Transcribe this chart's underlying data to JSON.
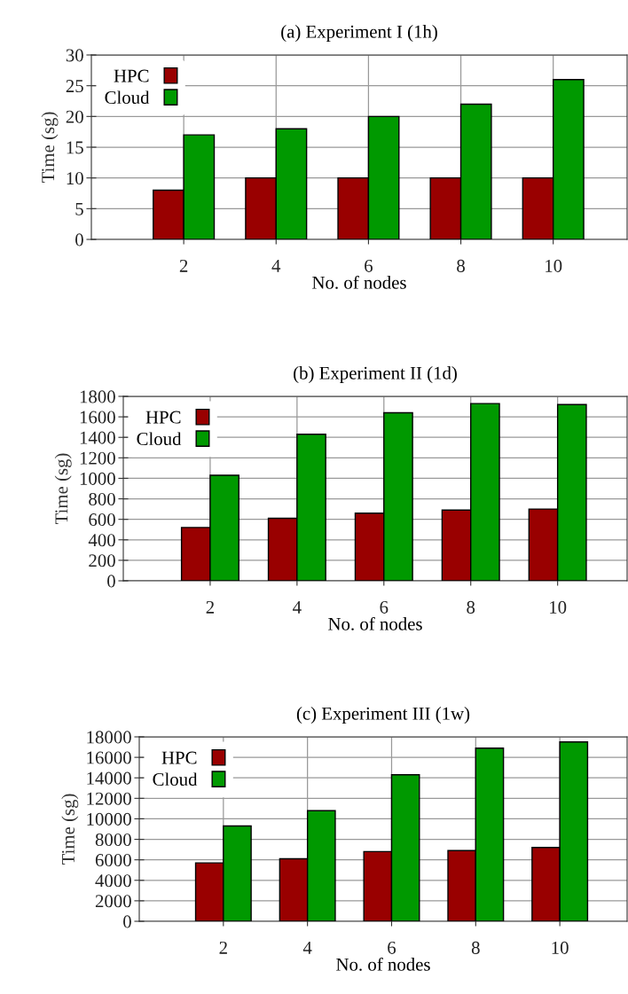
{
  "chart_data": [
    {
      "type": "bar",
      "title": "(a) Experiment I (1h)",
      "xlabel": "No. of nodes",
      "ylabel": "Time (sg)",
      "x": [
        2,
        4,
        6,
        8,
        10
      ],
      "xlim": [
        0,
        11.6
      ],
      "xticks": [
        2,
        4,
        6,
        8,
        10
      ],
      "ylim": [
        0,
        30
      ],
      "yticks": [
        0,
        5,
        10,
        15,
        20,
        25,
        30
      ],
      "grid": true,
      "legend": "top left",
      "series": [
        {
          "name": "HPC",
          "color": "#990000",
          "values": [
            8,
            10,
            10,
            10,
            10
          ]
        },
        {
          "name": "Cloud",
          "color": "#009900",
          "values": [
            17,
            18,
            20,
            22,
            26
          ]
        }
      ]
    },
    {
      "type": "bar",
      "title": "(b) Experiment II (1d)",
      "xlabel": "No. of nodes",
      "ylabel": "Time (sg)",
      "x": [
        2,
        4,
        6,
        8,
        10
      ],
      "xlim": [
        0,
        11.6
      ],
      "xticks": [
        2,
        4,
        6,
        8,
        10
      ],
      "ylim": [
        0,
        1800
      ],
      "yticks": [
        0,
        200,
        400,
        600,
        800,
        1000,
        1200,
        1400,
        1600,
        1800
      ],
      "grid": true,
      "legend": "top left",
      "series": [
        {
          "name": "HPC",
          "color": "#990000",
          "values": [
            520,
            610,
            660,
            690,
            700
          ]
        },
        {
          "name": "Cloud",
          "color": "#009900",
          "values": [
            1030,
            1430,
            1640,
            1730,
            1720
          ]
        }
      ]
    },
    {
      "type": "bar",
      "title": "(c) Experiment III (1w)",
      "xlabel": "No. of nodes",
      "ylabel": "Time (sg)",
      "x": [
        2,
        4,
        6,
        8,
        10
      ],
      "xlim": [
        0,
        11.6
      ],
      "xticks": [
        2,
        4,
        6,
        8,
        10
      ],
      "ylim": [
        0,
        18000
      ],
      "yticks": [
        0,
        2000,
        4000,
        6000,
        8000,
        10000,
        12000,
        14000,
        16000,
        18000
      ],
      "grid": true,
      "legend": "top left",
      "series": [
        {
          "name": "HPC",
          "color": "#990000",
          "values": [
            5700,
            6100,
            6800,
            6900,
            7200
          ]
        },
        {
          "name": "Cloud",
          "color": "#009900",
          "values": [
            9300,
            10800,
            14300,
            16900,
            17500
          ]
        }
      ]
    }
  ]
}
